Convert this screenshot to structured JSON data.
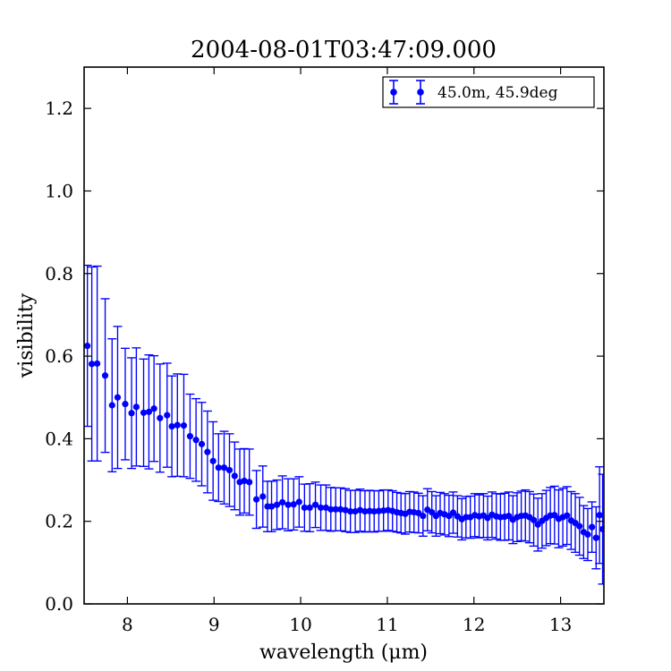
{
  "chart_data": {
    "type": "scatter",
    "title": "2004-08-01T03:47:09.000",
    "xlabel": "wavelength (μm)",
    "ylabel": "visibility",
    "xlim": [
      7.5,
      13.5
    ],
    "ylim": [
      0.0,
      1.3
    ],
    "xticks": [
      8,
      9,
      10,
      11,
      12,
      13
    ],
    "yticks": [
      0.0,
      0.2,
      0.4,
      0.6,
      0.8,
      1.0,
      1.2
    ],
    "xtick_labels": [
      "8",
      "9",
      "10",
      "11",
      "12",
      "13"
    ],
    "ytick_labels": [
      "0.0",
      "0.2",
      "0.4",
      "0.6",
      "0.8",
      "1.0",
      "1.2"
    ],
    "grid": false,
    "legend_position": "top-right",
    "marker_color": "#0000ff",
    "series": [
      {
        "name": "45.0m, 45.9deg",
        "x": [
          7.538,
          7.589,
          7.651,
          7.743,
          7.823,
          7.887,
          7.975,
          8.048,
          8.103,
          8.187,
          8.248,
          8.307,
          8.376,
          8.458,
          8.513,
          8.577,
          8.651,
          8.723,
          8.792,
          8.858,
          8.924,
          8.989,
          9.052,
          9.116,
          9.178,
          9.238,
          9.297,
          9.349,
          9.407,
          9.489,
          9.563,
          9.617,
          9.664,
          9.726,
          9.789,
          9.855,
          9.919,
          9.982,
          10.044,
          10.105,
          10.17,
          10.232,
          10.292,
          10.348,
          10.404,
          10.46,
          10.517,
          10.574,
          10.63,
          10.686,
          10.742,
          10.796,
          10.848,
          10.902,
          10.956,
          11.009,
          11.06,
          11.11,
          11.158,
          11.207,
          11.258,
          11.308,
          11.36,
          11.412,
          11.463,
          11.514,
          11.562,
          11.61,
          11.66,
          11.712,
          11.76,
          11.81,
          11.86,
          11.908,
          11.958,
          12.01,
          12.06,
          12.11,
          12.158,
          12.208,
          12.258,
          12.306,
          12.354,
          12.402,
          12.45,
          12.498,
          12.546,
          12.594,
          12.642,
          12.69,
          12.738,
          12.786,
          12.834,
          12.882,
          12.93,
          12.978,
          13.026,
          13.074,
          13.122,
          13.17,
          13.218,
          13.266,
          13.314,
          13.362,
          13.41,
          13.45,
          13.485
        ],
        "y": [
          0.625,
          0.581,
          0.582,
          0.553,
          0.481,
          0.5,
          0.484,
          0.462,
          0.477,
          0.463,
          0.465,
          0.473,
          0.45,
          0.457,
          0.43,
          0.433,
          0.432,
          0.406,
          0.397,
          0.387,
          0.368,
          0.346,
          0.33,
          0.33,
          0.324,
          0.31,
          0.295,
          0.298,
          0.295,
          0.253,
          0.26,
          0.236,
          0.236,
          0.24,
          0.246,
          0.24,
          0.241,
          0.247,
          0.233,
          0.233,
          0.24,
          0.233,
          0.233,
          0.229,
          0.229,
          0.229,
          0.227,
          0.224,
          0.224,
          0.227,
          0.224,
          0.225,
          0.224,
          0.225,
          0.226,
          0.227,
          0.225,
          0.222,
          0.22,
          0.218,
          0.223,
          0.222,
          0.22,
          0.213,
          0.228,
          0.222,
          0.213,
          0.22,
          0.217,
          0.213,
          0.221,
          0.212,
          0.205,
          0.21,
          0.21,
          0.215,
          0.212,
          0.214,
          0.208,
          0.216,
          0.212,
          0.21,
          0.211,
          0.213,
          0.204,
          0.21,
          0.213,
          0.214,
          0.21,
          0.203,
          0.192,
          0.201,
          0.208,
          0.214,
          0.215,
          0.206,
          0.21,
          0.214,
          0.202,
          0.196,
          0.188,
          0.174,
          0.168,
          0.186,
          0.16,
          0.215,
          0.181
        ],
        "err": [
          0.195,
          0.235,
          0.236,
          0.186,
          0.161,
          0.172,
          0.135,
          0.134,
          0.143,
          0.13,
          0.138,
          0.128,
          0.131,
          0.126,
          0.122,
          0.124,
          0.124,
          0.102,
          0.1,
          0.101,
          0.099,
          0.095,
          0.082,
          0.088,
          0.088,
          0.082,
          0.08,
          0.078,
          0.08,
          0.07,
          0.074,
          0.061,
          0.061,
          0.06,
          0.064,
          0.063,
          0.062,
          0.061,
          0.057,
          0.058,
          0.055,
          0.055,
          0.055,
          0.053,
          0.052,
          0.052,
          0.052,
          0.051,
          0.051,
          0.051,
          0.05,
          0.05,
          0.05,
          0.049,
          0.05,
          0.049,
          0.049,
          0.048,
          0.048,
          0.049,
          0.049,
          0.049,
          0.048,
          0.049,
          0.051,
          0.05,
          0.049,
          0.05,
          0.05,
          0.05,
          0.05,
          0.05,
          0.05,
          0.05,
          0.051,
          0.052,
          0.052,
          0.053,
          0.053,
          0.055,
          0.055,
          0.056,
          0.057,
          0.058,
          0.058,
          0.059,
          0.06,
          0.062,
          0.062,
          0.063,
          0.064,
          0.066,
          0.067,
          0.068,
          0.07,
          0.07,
          0.07,
          0.07,
          0.07,
          0.071,
          0.07,
          0.064,
          0.063,
          0.061,
          0.075,
          0.117,
          0.133
        ]
      }
    ]
  }
}
